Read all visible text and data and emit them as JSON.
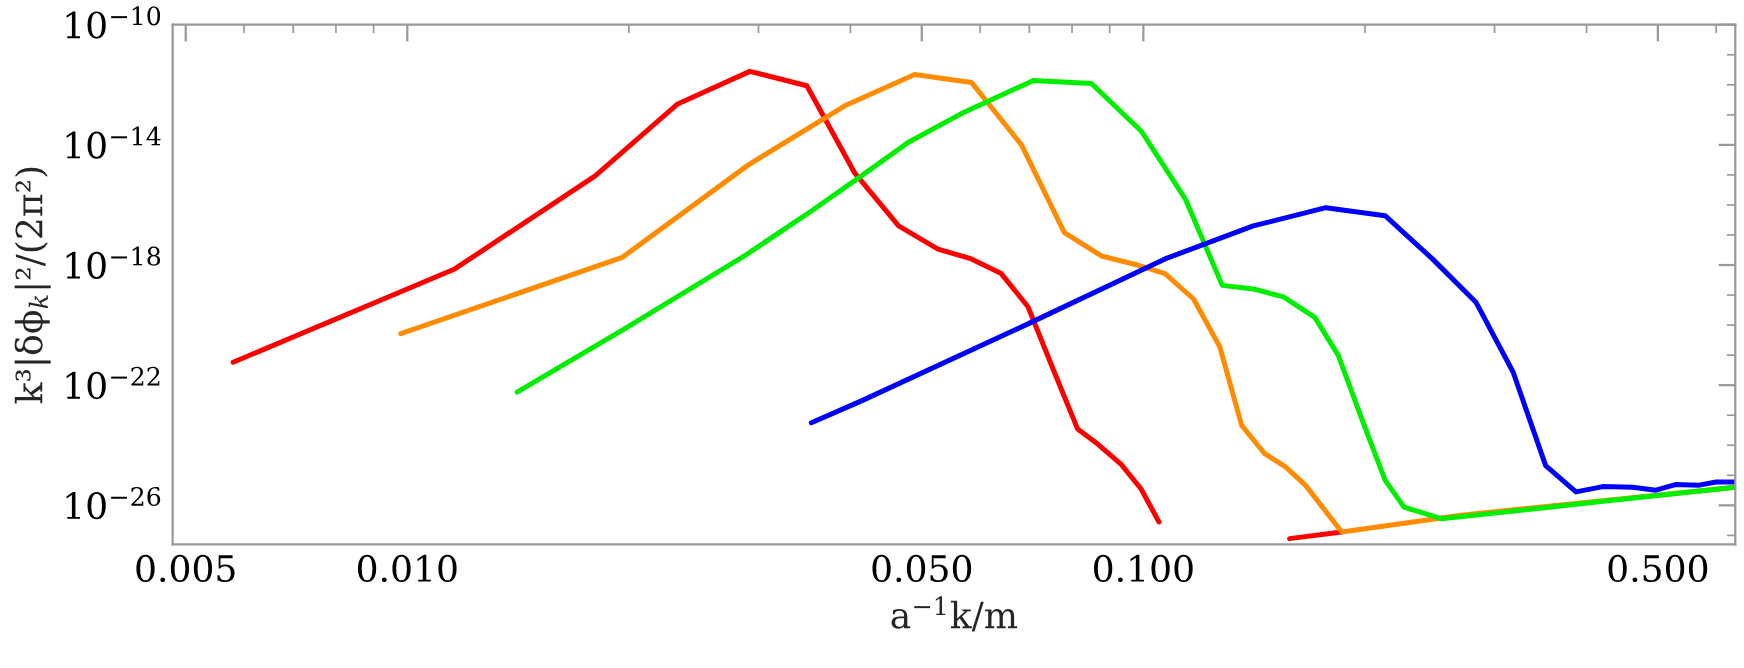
{
  "chart_data": {
    "type": "line",
    "xlabel": "a$^{−1}$k/m",
    "ylabel": "k³|δϕ$_{k}$|²/(2π²)",
    "log": "xy",
    "grid": false,
    "legend": false,
    "marker": "none",
    "line_style": "solid",
    "xlim": [
      0.0048,
      0.637
    ],
    "ylim": [
      5e-28,
      1e-10
    ],
    "xticks": [
      {
        "value": 0.005,
        "label": "0.005"
      },
      {
        "value": 0.006,
        "label": null
      },
      {
        "value": 0.007,
        "label": null
      },
      {
        "value": 0.008,
        "label": null
      },
      {
        "value": 0.009,
        "label": null
      },
      {
        "value": 0.01,
        "label": "0.010"
      },
      {
        "value": 0.02,
        "label": null
      },
      {
        "value": 0.03,
        "label": null
      },
      {
        "value": 0.04,
        "label": null
      },
      {
        "value": 0.05,
        "label": "0.050"
      },
      {
        "value": 0.06,
        "label": null
      },
      {
        "value": 0.07,
        "label": null
      },
      {
        "value": 0.08,
        "label": null
      },
      {
        "value": 0.09,
        "label": null
      },
      {
        "value": 0.1,
        "label": "0.100"
      },
      {
        "value": 0.2,
        "label": null
      },
      {
        "value": 0.3,
        "label": null
      },
      {
        "value": 0.4,
        "label": null
      },
      {
        "value": 0.5,
        "label": "0.500"
      },
      {
        "value": 0.6,
        "label": null
      }
    ],
    "yticks": [
      {
        "value": 1e-27,
        "label": null
      },
      {
        "value": 1e-26,
        "label": "10$^{−26}$"
      },
      {
        "value": 1e-25,
        "label": null
      },
      {
        "value": 1e-24,
        "label": null
      },
      {
        "value": 1e-23,
        "label": null
      },
      {
        "value": 1e-22,
        "label": "10$^{−22}$"
      },
      {
        "value": 1e-21,
        "label": null
      },
      {
        "value": 1e-20,
        "label": null
      },
      {
        "value": 1e-19,
        "label": null
      },
      {
        "value": 1e-18,
        "label": "10$^{−18}$"
      },
      {
        "value": 1e-17,
        "label": null
      },
      {
        "value": 1e-16,
        "label": null
      },
      {
        "value": 1e-15,
        "label": null
      },
      {
        "value": 1e-14,
        "label": "10$^{−14}$"
      },
      {
        "value": 1e-13,
        "label": null
      },
      {
        "value": 1e-12,
        "label": null
      },
      {
        "value": 1e-11,
        "label": null
      },
      {
        "value": 1e-10,
        "label": "10$^{−10}$"
      }
    ],
    "series": [
      {
        "color": "#ff0000",
        "x": [
          0.0058,
          0.0116,
          0.018,
          0.0233,
          0.0292,
          0.0349,
          0.0405,
          0.0465,
          0.0526,
          0.0584,
          0.0641,
          0.0697,
          0.0757,
          0.0814,
          0.0867,
          0.0933,
          0.0993,
          0.105,
          0.125,
          0.158,
          0.186
        ],
        "values": [
          5.8e-22,
          7.4e-19,
          9.3e-16,
          2.3e-13,
          2.8e-12,
          9.3e-13,
          1.2e-15,
          2e-17,
          3.4e-18,
          1.6e-18,
          5.2e-19,
          4.1e-20,
          2.7e-22,
          3.5e-24,
          1.1e-24,
          2.3e-25,
          3.5e-26,
          2.8e-27,
          null,
          7.8e-28,
          1.3e-27
        ]
      },
      {
        "color": "#ff8c00",
        "x": [
          0.0098,
          0.0196,
          0.0291,
          0.0393,
          0.0489,
          0.0584,
          0.0683,
          0.0781,
          0.0877,
          0.0982,
          0.107,
          0.117,
          0.127,
          0.136,
          0.146,
          0.156,
          0.166,
          0.186,
          0.27,
          0.637
        ],
        "values": [
          5.2e-21,
          1.8e-18,
          2.2e-15,
          2e-13,
          2.2e-12,
          1.2e-12,
          1e-14,
          1.2e-17,
          2e-18,
          1e-18,
          5.2e-19,
          7.4e-20,
          1.9e-21,
          4.6e-24,
          5.4e-25,
          1.9e-25,
          4.7e-26,
          1.3e-27,
          4.7e-27,
          4e-26
        ]
      },
      {
        "color": "#00ee00",
        "x": [
          0.0141,
          0.0197,
          0.0287,
          0.0354,
          0.0414,
          0.0479,
          0.0566,
          0.0709,
          0.085,
          0.0993,
          0.114,
          0.128,
          0.141,
          0.155,
          0.171,
          0.184,
          0.198,
          0.213,
          0.226,
          0.254,
          0.3,
          0.437,
          0.637
        ],
        "values": [
          5.9e-23,
          7.4e-21,
          2e-18,
          6.3e-17,
          9.3e-16,
          1.2e-14,
          1.1e-13,
          1.4e-12,
          1.1e-12,
          2.9e-14,
          1.6e-16,
          2.1e-19,
          1.6e-19,
          8.7e-20,
          1.8e-20,
          9.8e-22,
          7.6e-24,
          6.9e-26,
          8.7e-27,
          3.6e-27,
          5.5e-27,
          1.5e-26,
          4e-26
        ]
      },
      {
        "color": "#0000ff",
        "x": [
          0.0354,
          0.0414,
          0.0697,
          0.107,
          0.141,
          0.177,
          0.213,
          0.247,
          0.283,
          0.318,
          0.352,
          0.387,
          0.421,
          0.462,
          0.497,
          0.528,
          0.569,
          0.6,
          0.637
        ],
        "values": [
          5.6e-24,
          3e-23,
          1.1e-20,
          1.6e-18,
          2e-17,
          8.1e-17,
          4.4e-17,
          1.6e-18,
          5.8e-20,
          2.7e-22,
          2.1e-25,
          2.8e-26,
          4.2e-26,
          4e-26,
          3.2e-26,
          4.9e-26,
          4.7e-26,
          6e-26,
          6e-26
        ]
      }
    ]
  }
}
